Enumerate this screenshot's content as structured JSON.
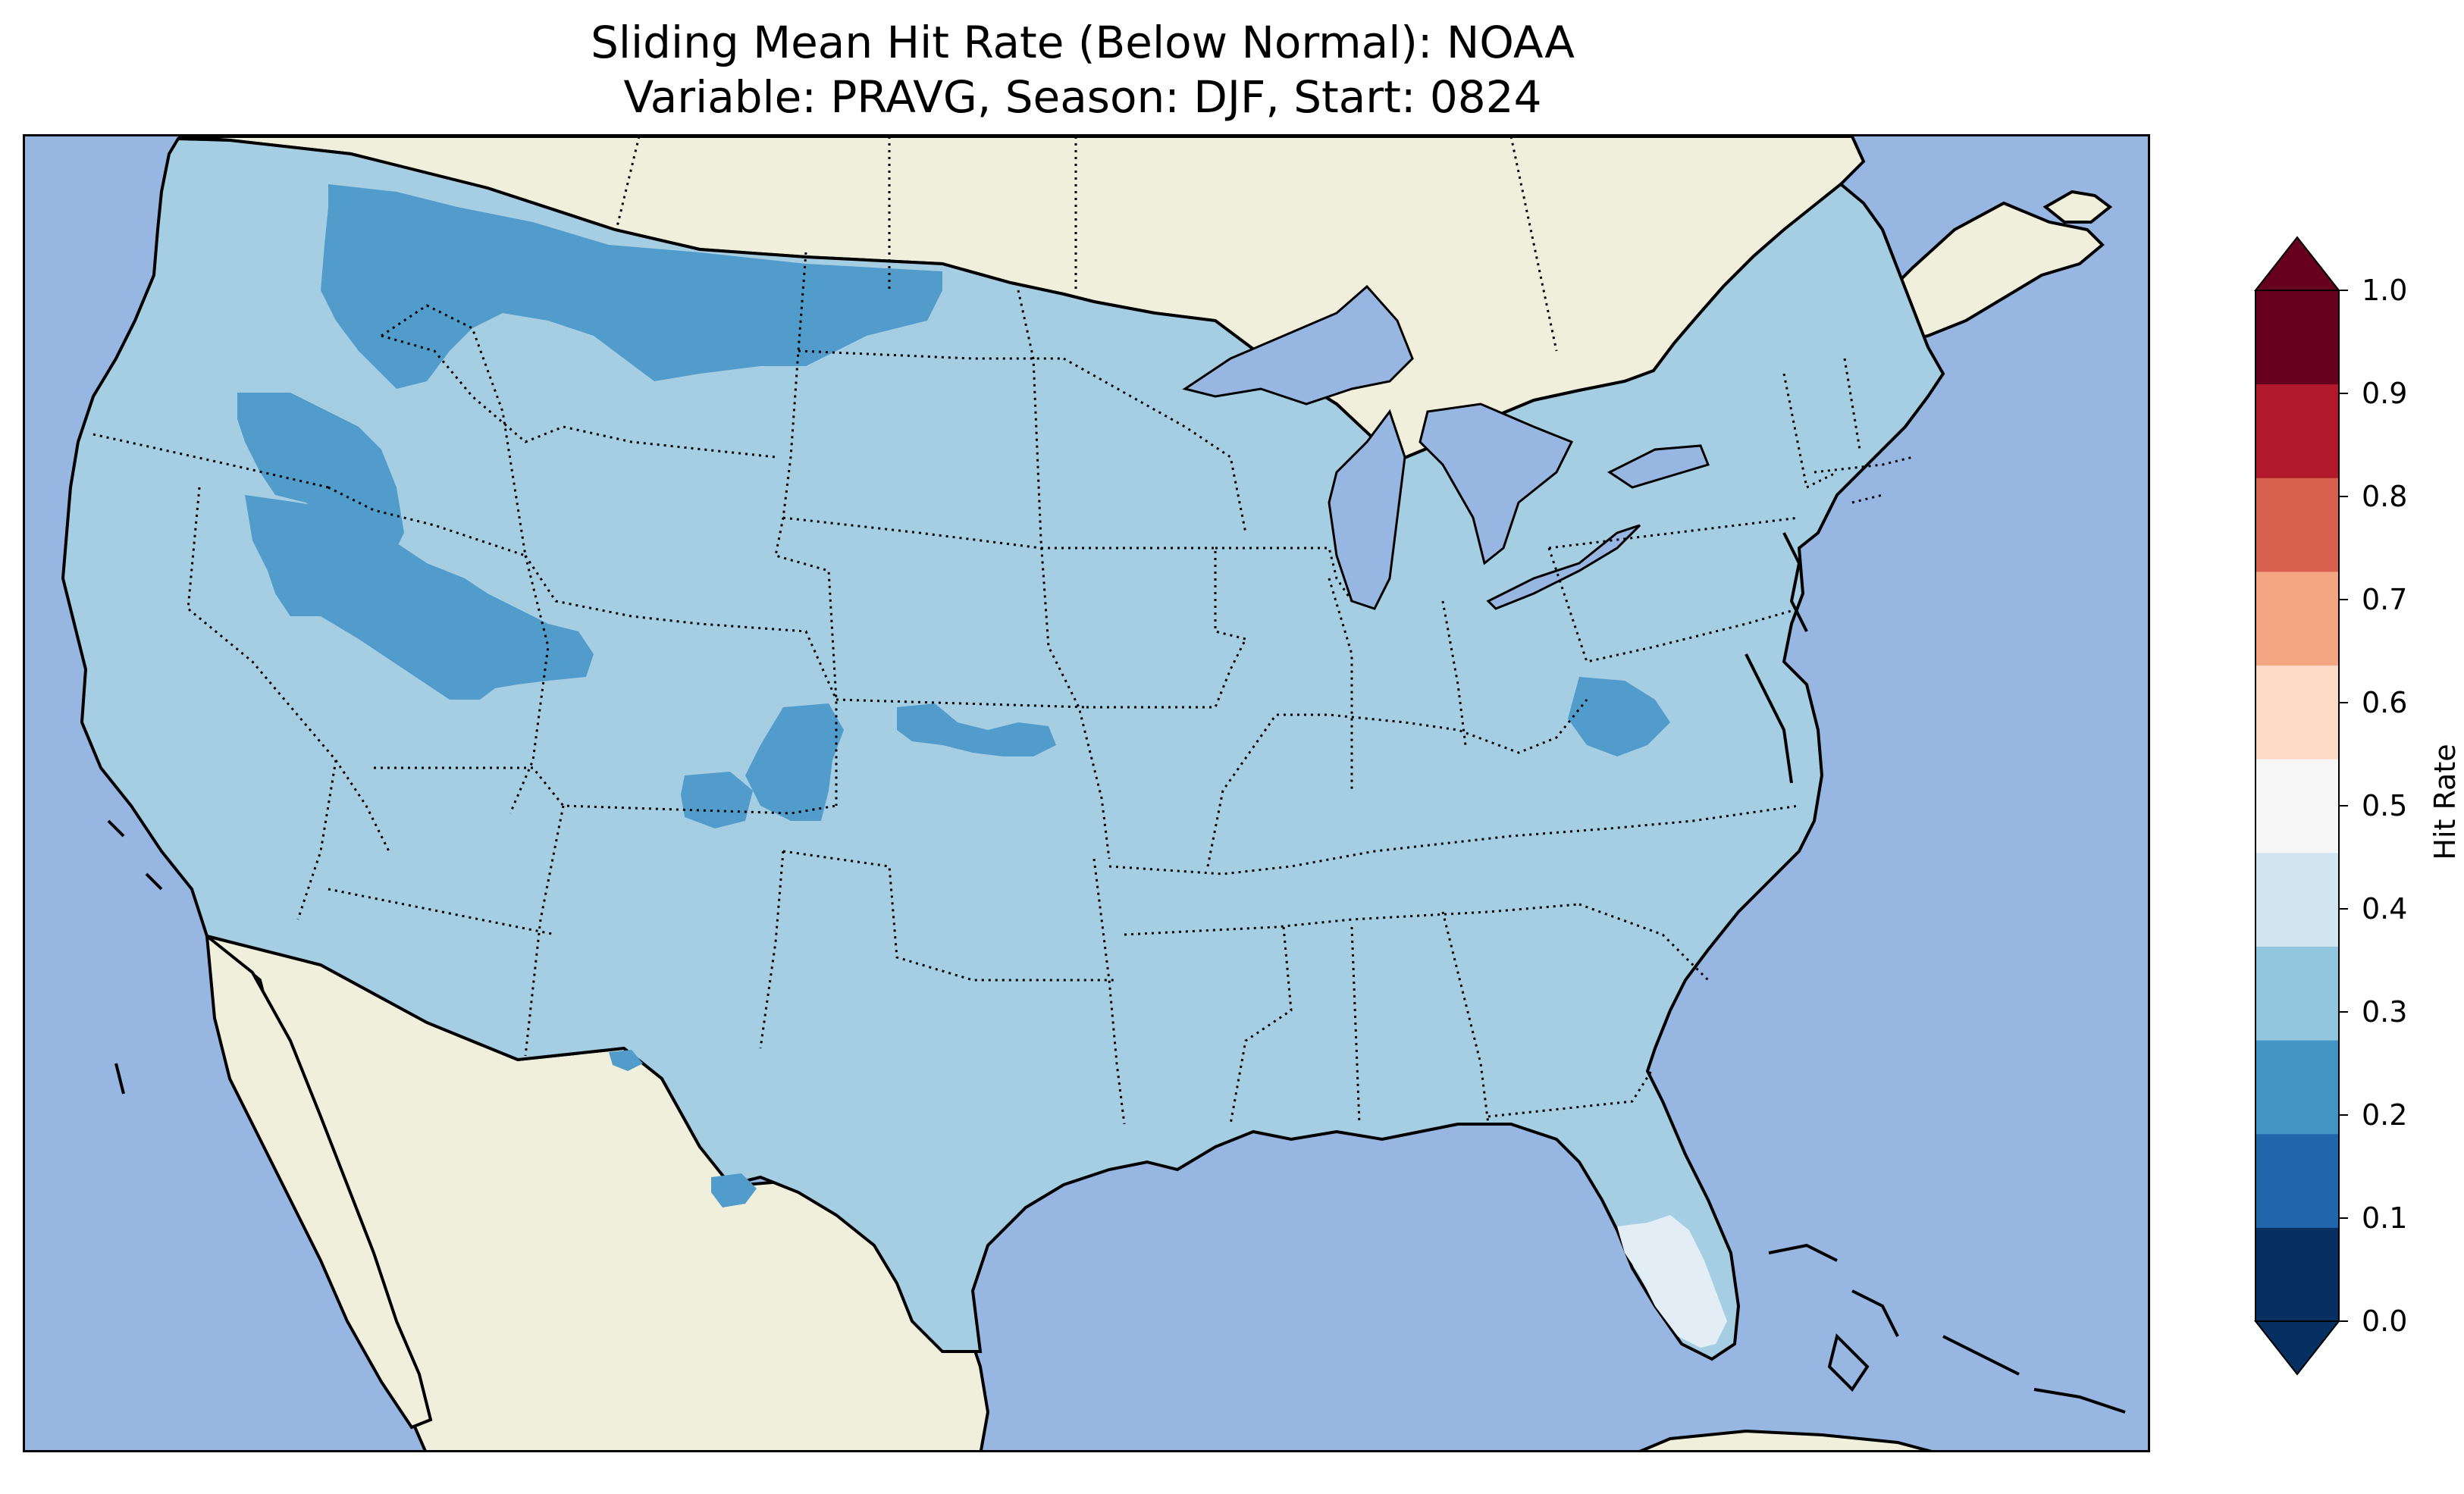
{
  "title": {
    "line1": "Sliding Mean Hit Rate (Below Normal): NOAA",
    "line2": "Variable: PRAVG, Season: DJF, Start: 0824"
  },
  "colorbar": {
    "label": "Hit Rate",
    "ticks": [
      "0.0",
      "0.1",
      "0.2",
      "0.3",
      "0.4",
      "0.5",
      "0.6",
      "0.7",
      "0.8",
      "0.9",
      "1.0"
    ],
    "colors": [
      "#053061",
      "#2166ac",
      "#4393c3",
      "#92c5de",
      "#d1e5f0",
      "#f7f7f7",
      "#fddbc7",
      "#f4a582",
      "#d6604d",
      "#b2182b",
      "#67001f"
    ],
    "under_color": "#053061",
    "over_color": "#67001f"
  },
  "map": {
    "ocean_color": "#97b6e1",
    "land_color": "#efefdb",
    "dominant_hit_rate_range": "0.3-0.4",
    "dominant_color": "#a6cee3",
    "low_region_color": "#529ccb",
    "high_region_color": "#e3edf5",
    "regions": [
      {
        "name": "Northern Rockies / Montana",
        "hit_rate_range": "0.2-0.3"
      },
      {
        "name": "Oregon / Idaho",
        "hit_rate_range": "0.2-0.3"
      },
      {
        "name": "Nevada / Utah",
        "hit_rate_range": "0.2-0.3"
      },
      {
        "name": "Colorado",
        "hit_rate_range": "0.2-0.3"
      },
      {
        "name": "Kansas",
        "hit_rate_range": "0.2-0.3"
      },
      {
        "name": "West Virginia",
        "hit_rate_range": "0.2-0.3"
      },
      {
        "name": "South Texas",
        "hit_rate_range": "0.2-0.3"
      },
      {
        "name": "South Florida",
        "hit_rate_range": "0.4-0.5"
      }
    ]
  }
}
